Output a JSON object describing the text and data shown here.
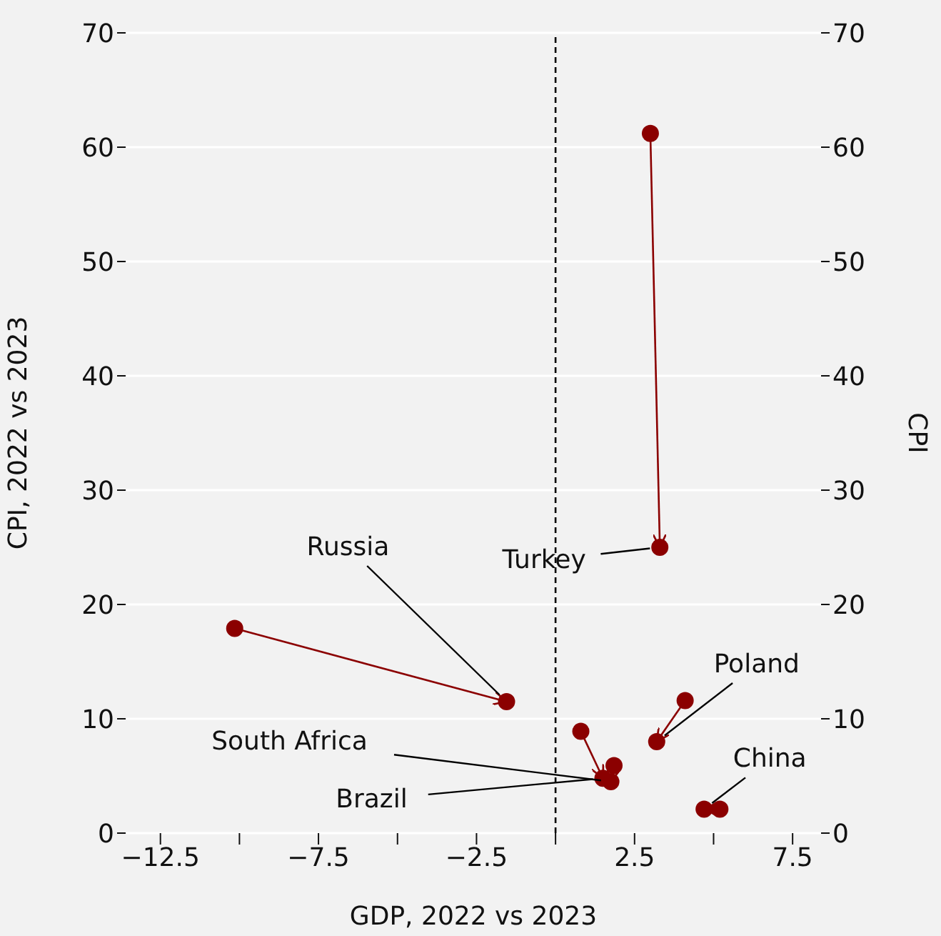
{
  "chart_data": {
    "type": "line",
    "xlabel": "GDP, 2022 vs 2023",
    "ylabel": "CPI, 2022 vs 2023",
    "y2label": "CPI",
    "xlim": [
      -13.6,
      8.4
    ],
    "xticks": [
      -12.5,
      {
        "value": -10,
        "label": null
      },
      -7.5,
      {
        "value": -5,
        "label": null
      },
      -2.5,
      {
        "value": 0,
        "label": null
      },
      2.5,
      {
        "value": 5,
        "label": null
      },
      7.5
    ],
    "ylim": [
      0,
      70
    ],
    "yticks": [
      0,
      10,
      20,
      30,
      40,
      50,
      60,
      70
    ],
    "y2lim": [
      0,
      70
    ],
    "y2ticks": [
      0,
      10,
      20,
      30,
      40,
      50,
      60,
      70
    ],
    "grid": "y",
    "marker": "circle",
    "line_style": "solid",
    "ref_lines": [
      {
        "axis": "x",
        "value": 0,
        "color": "#000000",
        "line_style": "dashed"
      }
    ],
    "series": [
      {
        "name": "Russia",
        "color": "#8b0000",
        "x": [
          -10.15,
          -1.55
        ],
        "values": [
          17.9,
          11.5
        ]
      },
      {
        "name": "Turkey",
        "color": "#8b0000",
        "x": [
          3.0,
          3.3
        ],
        "values": [
          61.2,
          25.0
        ]
      },
      {
        "name": "Poland",
        "color": "#8b0000",
        "x": [
          4.1,
          3.2
        ],
        "values": [
          11.6,
          8.0
        ]
      },
      {
        "name": "South Africa",
        "color": "#8b0000",
        "x": [
          1.85,
          1.75
        ],
        "values": [
          5.9,
          4.5
        ]
      },
      {
        "name": "Brazil",
        "color": "#8b0000",
        "x": [
          0.8,
          1.5
        ],
        "values": [
          8.9,
          4.8
        ]
      },
      {
        "name": "China",
        "color": "#8b0000",
        "x": [
          5.2,
          4.7
        ],
        "values": [
          2.1,
          2.1
        ]
      }
    ]
  }
}
